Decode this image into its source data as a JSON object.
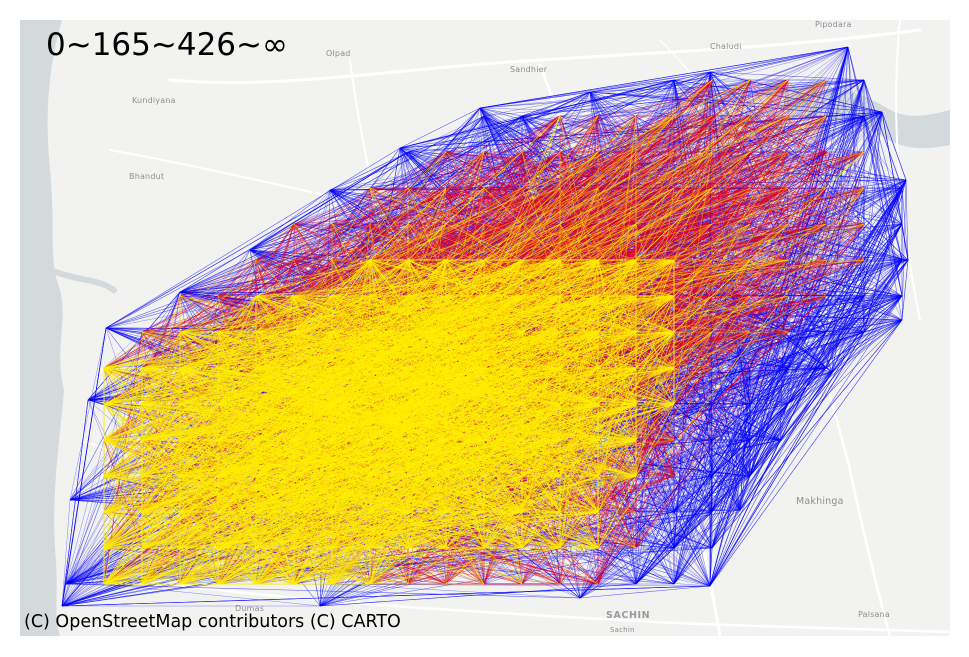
{
  "map": {
    "legend_title": "0~165~426~∞",
    "attribution": "(C) OpenStreetMap contributors (C) CARTO",
    "places": [
      {
        "id": "place-pipodara",
        "label": "Pipodara"
      },
      {
        "id": "place-chaludi",
        "label": "Chaludi"
      },
      {
        "id": "place-olpad",
        "label": "Olpad"
      },
      {
        "id": "place-sandhier",
        "label": "Sandhier"
      },
      {
        "id": "place-kundiyana",
        "label": "Kundiyana"
      },
      {
        "id": "place-bhandut",
        "label": "Bhandut"
      },
      {
        "id": "place-makhinga",
        "label": "Makhinga"
      },
      {
        "id": "place-dumas",
        "label": "Dumas"
      },
      {
        "id": "place-sachin",
        "label": "SACHIN"
      },
      {
        "id": "place-sachin-small",
        "label": "Sachin"
      },
      {
        "id": "place-palsana",
        "label": "Palsana"
      }
    ],
    "flow_classes": [
      {
        "name": "0~165",
        "color": "#0000ff"
      },
      {
        "name": "165~426",
        "color": "#e8001c"
      },
      {
        "name": "426~∞",
        "color": "#ffee00"
      }
    ],
    "colors": {
      "land": "#f2f2f0",
      "water": "#d4dadc",
      "road": "#ffffff"
    }
  }
}
